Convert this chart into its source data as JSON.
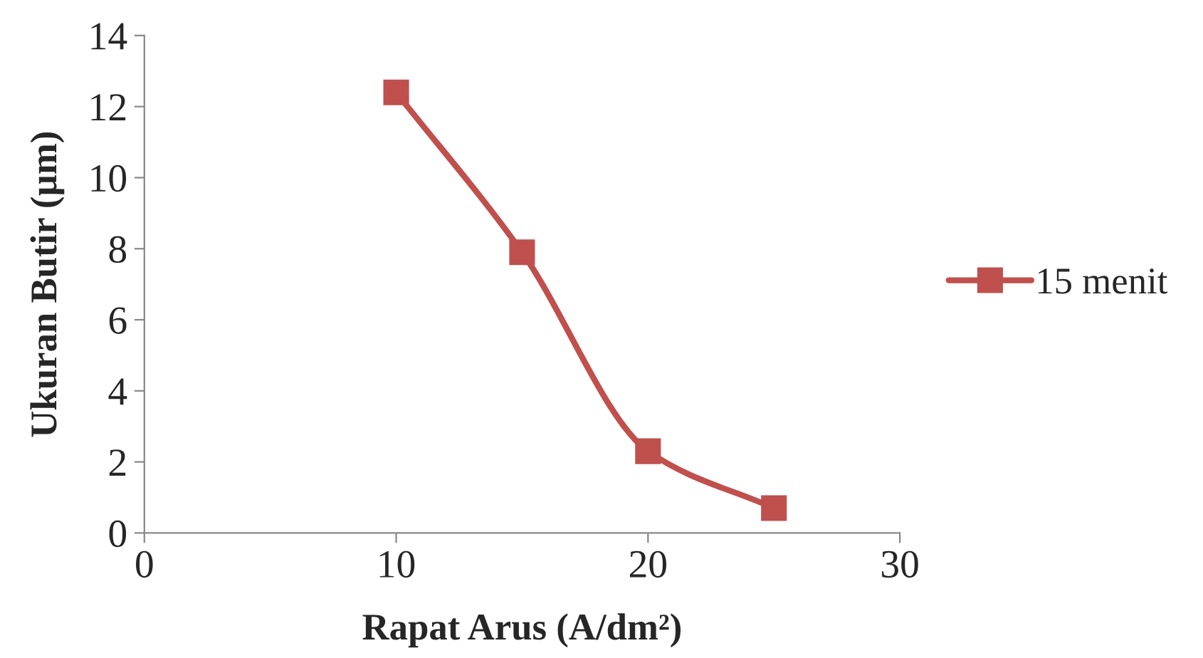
{
  "chart_data": {
    "type": "line",
    "xlabel": "Rapat Arus (A/dm²)",
    "ylabel": "Ukuran Butir (µm)",
    "x": [
      10,
      15,
      20,
      25
    ],
    "series": [
      {
        "name": "15 menit",
        "color": "#c0504d",
        "values": [
          12.4,
          7.9,
          2.3,
          0.7
        ]
      }
    ],
    "xlim": [
      0,
      30
    ],
    "xticks": [
      0,
      10,
      20,
      30
    ],
    "ylim": [
      0,
      14
    ],
    "yticks": [
      0,
      2,
      4,
      6,
      8,
      10,
      12,
      14
    ],
    "grid": false,
    "legend": "right",
    "marker": "square",
    "line_style": "solid"
  }
}
